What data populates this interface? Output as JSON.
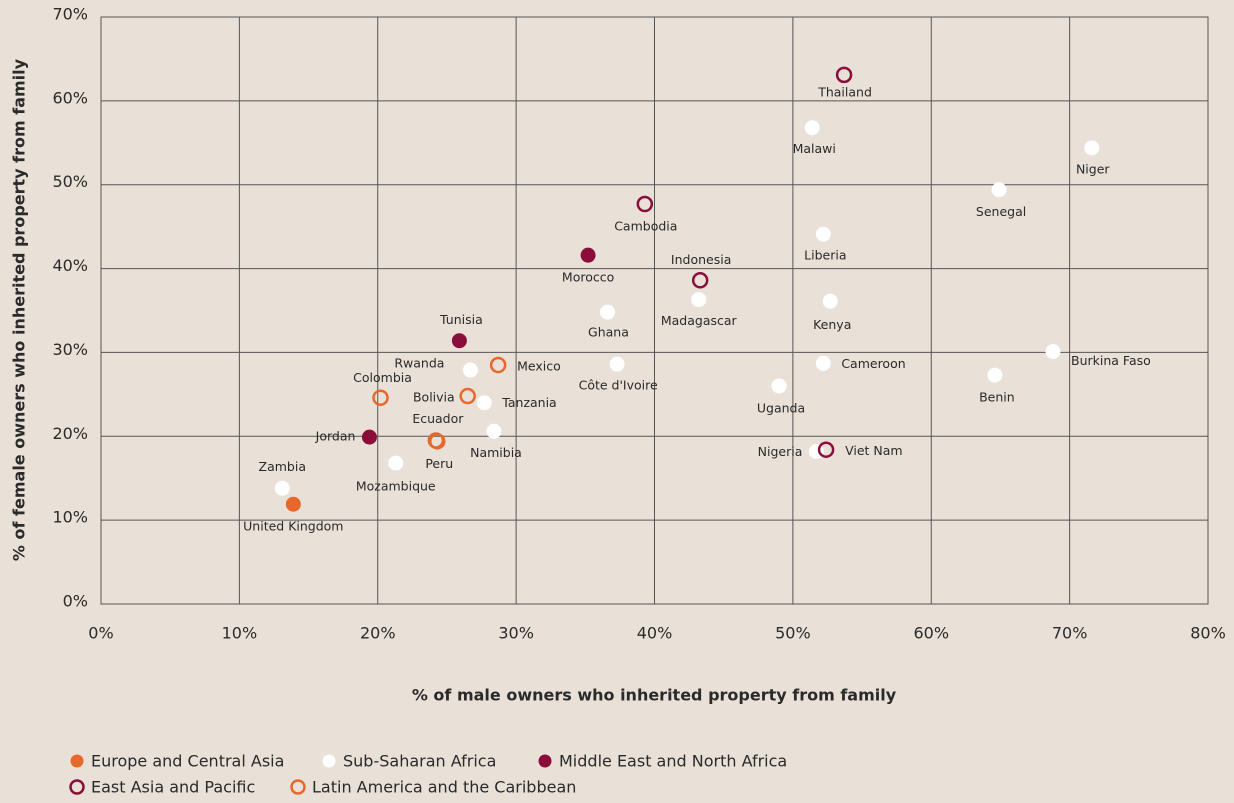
{
  "chart_data": {
    "type": "scatter",
    "x_label": "% of male owners who inherited property from family",
    "y_label": "% of female owners who inherited property from family",
    "xlim": [
      0,
      80
    ],
    "ylim": [
      0,
      70
    ],
    "xticks": [
      {
        "value": 0,
        "label": "0%"
      },
      {
        "value": 10,
        "label": "10%"
      },
      {
        "value": 20,
        "label": "20%"
      },
      {
        "value": 30,
        "label": "30%"
      },
      {
        "value": 40,
        "label": "40%"
      },
      {
        "value": 50,
        "label": "50%"
      },
      {
        "value": 60,
        "label": "60%"
      },
      {
        "value": 70,
        "label": "70%"
      },
      {
        "value": 80,
        "label": "80%"
      }
    ],
    "yticks": [
      {
        "value": 0,
        "label": "0%"
      },
      {
        "value": 10,
        "label": "10%"
      },
      {
        "value": 20,
        "label": "20%"
      },
      {
        "value": 30,
        "label": "30%"
      },
      {
        "value": 40,
        "label": "40%"
      },
      {
        "value": 50,
        "label": "50%"
      },
      {
        "value": 60,
        "label": "60%"
      },
      {
        "value": 70,
        "label": "70%"
      }
    ],
    "grid": true,
    "series": [
      {
        "name": "Europe and Central Asia",
        "color": "#e8672a",
        "marker": "filled",
        "labels": [
          "United Kingdom"
        ],
        "x": [
          13.9
        ],
        "y": [
          11.9
        ]
      },
      {
        "name": "Sub-Saharan Africa",
        "color": "#ffffff",
        "marker": "filled",
        "labels": [
          "Zambia",
          "Mozambique",
          "Rwanda",
          "Tanzania",
          "Namibia",
          "Ghana",
          "Côte d'Ivoire",
          "Madagascar",
          "Malawi",
          "Liberia",
          "Kenya",
          "Cameroon",
          "Uganda",
          "Nigeria",
          "Senegal",
          "Niger",
          "Burkina Faso",
          "Benin"
        ],
        "x": [
          13.1,
          21.3,
          26.7,
          27.7,
          28.4,
          36.6,
          37.3,
          43.2,
          51.4,
          52.2,
          52.7,
          52.2,
          49.0,
          51.7,
          64.9,
          71.6,
          68.8,
          64.6
        ],
        "y": [
          13.8,
          16.8,
          27.9,
          24.0,
          20.6,
          34.8,
          28.6,
          36.3,
          56.8,
          44.1,
          36.1,
          28.7,
          26.0,
          18.2,
          49.4,
          54.4,
          30.1,
          27.3
        ]
      },
      {
        "name": "Middle East and North Africa",
        "color": "#8b0d3a",
        "marker": "filled",
        "labels": [
          "Morocco",
          "Tunisia",
          "Jordan"
        ],
        "x": [
          35.2,
          25.9,
          19.4
        ],
        "y": [
          41.6,
          31.4,
          19.9
        ]
      },
      {
        "name": "East Asia and Pacific",
        "color": "#8b0d3a",
        "marker": "hollow",
        "labels": [
          "Thailand",
          "Cambodia",
          "Indonesia",
          "Viet Nam"
        ],
        "x": [
          53.7,
          39.3,
          43.3,
          52.4
        ],
        "y": [
          63.1,
          47.7,
          38.6,
          18.4
        ]
      },
      {
        "name": "Latin America and the Caribbean",
        "color": "#e8672a",
        "marker": "hollow",
        "labels": [
          "Mexico",
          "Colombia",
          "Bolivia",
          "Ecuador",
          "Peru"
        ],
        "x": [
          28.7,
          20.2,
          26.5,
          24.2,
          24.3
        ],
        "y": [
          28.5,
          24.6,
          24.8,
          19.5,
          19.4
        ]
      }
    ]
  }
}
